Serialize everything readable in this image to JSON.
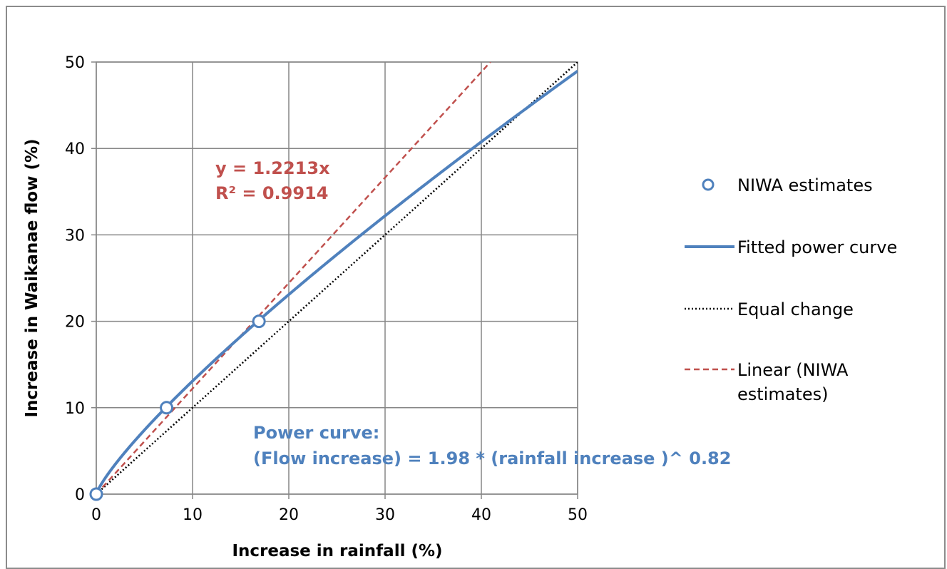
{
  "chart_data": {
    "type": "scatter",
    "xlabel": "Increase in rainfall (%)",
    "ylabel": "Increase in Waikanae flow (%)",
    "xlim": [
      0,
      50
    ],
    "ylim": [
      0,
      50
    ],
    "x_ticks": [
      "0",
      "10",
      "20",
      "30",
      "40",
      "50"
    ],
    "y_ticks": [
      "0",
      "10",
      "20",
      "30",
      "40",
      "50"
    ],
    "grid": true,
    "legend_position": "right",
    "series": [
      {
        "name": "NIWA estimates",
        "kind": "markers",
        "color": "#4f81bd",
        "points": [
          [
            0,
            0
          ],
          [
            7.3,
            10
          ],
          [
            16.9,
            20
          ]
        ]
      },
      {
        "name": "Fitted power curve",
        "kind": "line",
        "color": "#4f81bd",
        "coefficient": 1.98,
        "exponent": 0.82
      },
      {
        "name": "Equal change",
        "kind": "dotted-line",
        "color": "#000000",
        "points": [
          [
            0,
            0
          ],
          [
            50,
            50
          ]
        ]
      },
      {
        "name": "Linear (NIWA estimates)",
        "name_lines": [
          "Linear (NIWA",
          "estimates)"
        ],
        "kind": "dashed-line",
        "color": "#c0504d",
        "slope": 1.2213
      }
    ],
    "annotations": {
      "linear_equation": "y = 1.2213x",
      "linear_r2": "R² = 0.9914",
      "power_title": "Power curve:",
      "power_equation": "(Flow increase) = 1.98 * (rainfall increase )^ 0.82"
    }
  }
}
